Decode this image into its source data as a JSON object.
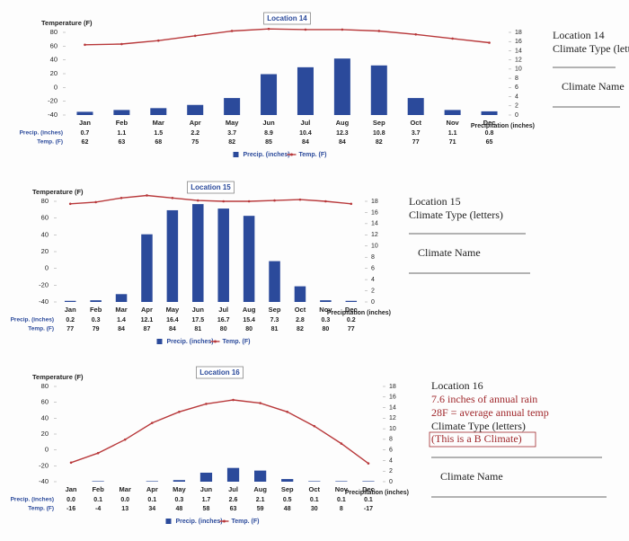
{
  "chart_data": [
    {
      "type": "combo",
      "title": "Location 14",
      "categories": [
        "Jan",
        "Feb",
        "Mar",
        "Apr",
        "May",
        "Jun",
        "Jul",
        "Aug",
        "Sep",
        "Oct",
        "Nov",
        "Dec"
      ],
      "ylabel": "Temperature (F)",
      "y2label": "Precipitation (inches)",
      "ylim": [
        -40,
        80
      ],
      "yticks": [
        -40,
        -20,
        0,
        20,
        40,
        60,
        80
      ],
      "y2lim": [
        0,
        18
      ],
      "y2ticks": [
        0,
        2,
        4,
        6,
        8,
        10,
        12,
        14,
        16,
        18
      ],
      "series": [
        {
          "name": "Precip. (inches)",
          "row_label": "Precip. (inches)",
          "color": "#2b4a9b",
          "axis": "y2",
          "values": [
            0.7,
            1.1,
            1.5,
            2.2,
            3.7,
            8.9,
            10.4,
            12.3,
            10.8,
            3.7,
            1.1,
            0.8
          ],
          "value_labels": [
            "0.7",
            "1.1",
            "1.5",
            "2.2",
            "3.7",
            "8.9",
            "10.4",
            "12.3",
            "10.8",
            "3.7",
            "1.1",
            "0.8"
          ]
        },
        {
          "name": "Temp. (F)",
          "row_label": "Temp. (F)",
          "color": "#b8383a",
          "axis": "y",
          "values": [
            62,
            63,
            68,
            75,
            82,
            85,
            84,
            84,
            82,
            77,
            71,
            65
          ]
        }
      ]
    },
    {
      "type": "combo",
      "title": "Location 15",
      "categories": [
        "Jan",
        "Feb",
        "Mar",
        "Apr",
        "May",
        "Jun",
        "Jul",
        "Aug",
        "Sep",
        "Oct",
        "Nov",
        "Dec"
      ],
      "ylabel": "Temperature (F)",
      "y2label": "Precipitation (inches)",
      "ylim": [
        -40,
        80
      ],
      "yticks": [
        -40,
        -20,
        0,
        20,
        40,
        60,
        80
      ],
      "y2lim": [
        0,
        18
      ],
      "y2ticks": [
        0,
        2,
        4,
        6,
        8,
        10,
        12,
        14,
        16,
        18
      ],
      "series": [
        {
          "name": "Precip. (inches)",
          "row_label": "Precip. (inches)",
          "color": "#2b4a9b",
          "axis": "y2",
          "values": [
            0.2,
            0.3,
            1.4,
            12.1,
            16.4,
            17.5,
            16.7,
            15.4,
            7.3,
            2.8,
            0.3,
            0.2
          ],
          "value_labels": [
            "0.2",
            "0.3",
            "1.4",
            "12.1",
            "16.4",
            "17.5",
            "16.7",
            "15.4",
            "7.3",
            "2.8",
            "0.3",
            "0.2"
          ]
        },
        {
          "name": "Temp. (F)",
          "row_label": "Temp. (F)",
          "color": "#b8383a",
          "axis": "y",
          "values": [
            77,
            79,
            84,
            87,
            84,
            81,
            80,
            80,
            81,
            82,
            80,
            77
          ]
        }
      ]
    },
    {
      "type": "combo",
      "title": "Location 16",
      "categories": [
        "Jan",
        "Feb",
        "Mar",
        "Apr",
        "May",
        "Jun",
        "Jul",
        "Aug",
        "Sep",
        "Oct",
        "Nov",
        "Dec"
      ],
      "ylabel": "Temperature (F)",
      "y2label": "Precipitation (inches)",
      "ylim": [
        -40,
        80
      ],
      "yticks": [
        -40,
        -20,
        0,
        20,
        40,
        60,
        80
      ],
      "y2lim": [
        0,
        18
      ],
      "y2ticks": [
        0,
        2,
        4,
        6,
        8,
        10,
        12,
        14,
        16,
        18
      ],
      "series": [
        {
          "name": "Precip. (inches)",
          "row_label": "Precip. (inches)",
          "color": "#2b4a9b",
          "axis": "y2",
          "values": [
            0.0,
            0.1,
            0.0,
            0.1,
            0.3,
            1.7,
            2.6,
            2.1,
            0.5,
            0.1,
            0.1,
            0.1
          ],
          "value_labels": [
            "0.0",
            "0.1",
            "0.0",
            "0.1",
            "0.3",
            "1.7",
            "2.6",
            "2.1",
            "0.5",
            "0.1",
            "0.1",
            "0.1"
          ]
        },
        {
          "name": "Temp. (F)",
          "row_label": "Temp. (F)",
          "color": "#b8383a",
          "axis": "y",
          "values": [
            -16,
            -4,
            13,
            34,
            48,
            58,
            63,
            59,
            48,
            30,
            8,
            -17
          ]
        }
      ]
    }
  ],
  "side_notes": [
    {
      "title": "Location 14",
      "type_label": "Climate Type (letters)",
      "name_label": "Climate Name"
    },
    {
      "title": "Location 15",
      "type_label": "Climate Type (letters)",
      "name_label": "Climate Name"
    },
    {
      "title": "Location 16",
      "facts": [
        "7.6 inches of annual rain",
        "28F = average annual temp"
      ],
      "type_label": "Climate Type (letters)",
      "hint": "(This is a B Climate)",
      "name_label": "Climate Name"
    }
  ]
}
